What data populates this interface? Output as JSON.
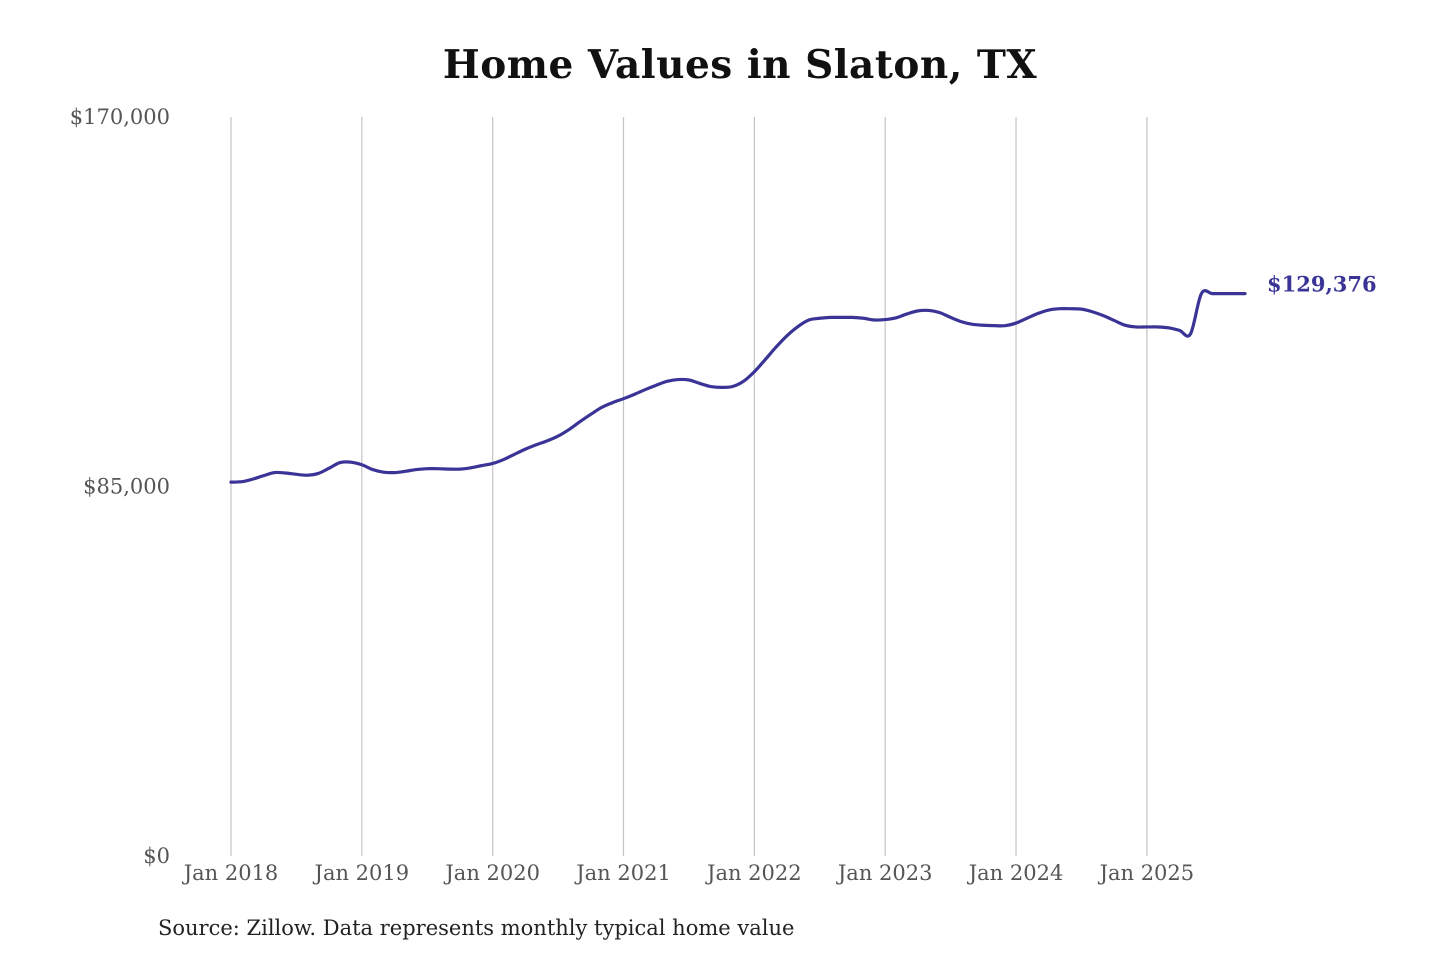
{
  "page": {
    "source_note": "Source: Zillow. Data represents monthly typical home value"
  },
  "chart_data": {
    "type": "line",
    "title": "Home Values in Slaton, TX",
    "xlabel": "",
    "ylabel": "",
    "ylim": [
      0,
      170000
    ],
    "xlim": [
      "2018-01",
      "2025-10"
    ],
    "y_ticks": [
      0,
      85000,
      170000
    ],
    "y_tick_labels": [
      "$0",
      "$85,000",
      "$170,000"
    ],
    "x_ticks": [
      "2018-01",
      "2019-01",
      "2020-01",
      "2021-01",
      "2022-01",
      "2023-01",
      "2024-01",
      "2025-01"
    ],
    "x_tick_labels": [
      "Jan 2018",
      "Jan 2019",
      "Jan 2020",
      "Jan 2021",
      "Jan 2022",
      "Jan 2023",
      "Jan 2024",
      "Jan 2025"
    ],
    "vertical_grid": true,
    "horizontal_grid": false,
    "line_color": "#3b3497",
    "end_label": "$129,376",
    "x": [
      "2018-01",
      "2018-02",
      "2018-03",
      "2018-04",
      "2018-05",
      "2018-06",
      "2018-07",
      "2018-08",
      "2018-09",
      "2018-10",
      "2018-11",
      "2018-12",
      "2019-01",
      "2019-02",
      "2019-03",
      "2019-04",
      "2019-05",
      "2019-06",
      "2019-07",
      "2019-08",
      "2019-09",
      "2019-10",
      "2019-11",
      "2019-12",
      "2020-01",
      "2020-02",
      "2020-03",
      "2020-04",
      "2020-05",
      "2020-06",
      "2020-07",
      "2020-08",
      "2020-09",
      "2020-10",
      "2020-11",
      "2020-12",
      "2021-01",
      "2021-02",
      "2021-03",
      "2021-04",
      "2021-05",
      "2021-06",
      "2021-07",
      "2021-08",
      "2021-09",
      "2021-10",
      "2021-11",
      "2021-12",
      "2022-01",
      "2022-02",
      "2022-03",
      "2022-04",
      "2022-05",
      "2022-06",
      "2022-07",
      "2022-08",
      "2022-09",
      "2022-10",
      "2022-11",
      "2022-12",
      "2023-01",
      "2023-02",
      "2023-03",
      "2023-04",
      "2023-05",
      "2023-06",
      "2023-07",
      "2023-08",
      "2023-09",
      "2023-10",
      "2023-11",
      "2023-12",
      "2024-01",
      "2024-02",
      "2024-03",
      "2024-04",
      "2024-05",
      "2024-06",
      "2024-07",
      "2024-08",
      "2024-09",
      "2024-10",
      "2024-11",
      "2024-12",
      "2025-01",
      "2025-02",
      "2025-03",
      "2025-04",
      "2025-05",
      "2025-06",
      "2025-07",
      "2025-08",
      "2025-09",
      "2025-10"
    ],
    "series": [
      {
        "values": [
          86000,
          86100,
          86700,
          87500,
          88200,
          88100,
          87800,
          87600,
          88000,
          89200,
          90500,
          90600,
          90000,
          88900,
          88300,
          88200,
          88500,
          88900,
          89100,
          89100,
          89000,
          89000,
          89300,
          89800,
          90300,
          91200,
          92400,
          93600,
          94600,
          95500,
          96600,
          98100,
          99900,
          101600,
          103200,
          104300,
          105200,
          106200,
          107300,
          108300,
          109200,
          109600,
          109500,
          108700,
          108000,
          107800,
          108000,
          109200,
          111400,
          114200,
          117100,
          119700,
          121800,
          123300,
          123700,
          123900,
          123900,
          123900,
          123700,
          123300,
          123400,
          123800,
          124700,
          125400,
          125500,
          125000,
          123900,
          122900,
          122300,
          122100,
          122000,
          122000,
          122600,
          123700,
          124800,
          125600,
          125900,
          125900,
          125800,
          125200,
          124300,
          123200,
          122100,
          121700,
          121700,
          121700,
          121500,
          120900,
          120100,
          129376,
          129376,
          129376,
          129376,
          129376
        ]
      }
    ]
  }
}
